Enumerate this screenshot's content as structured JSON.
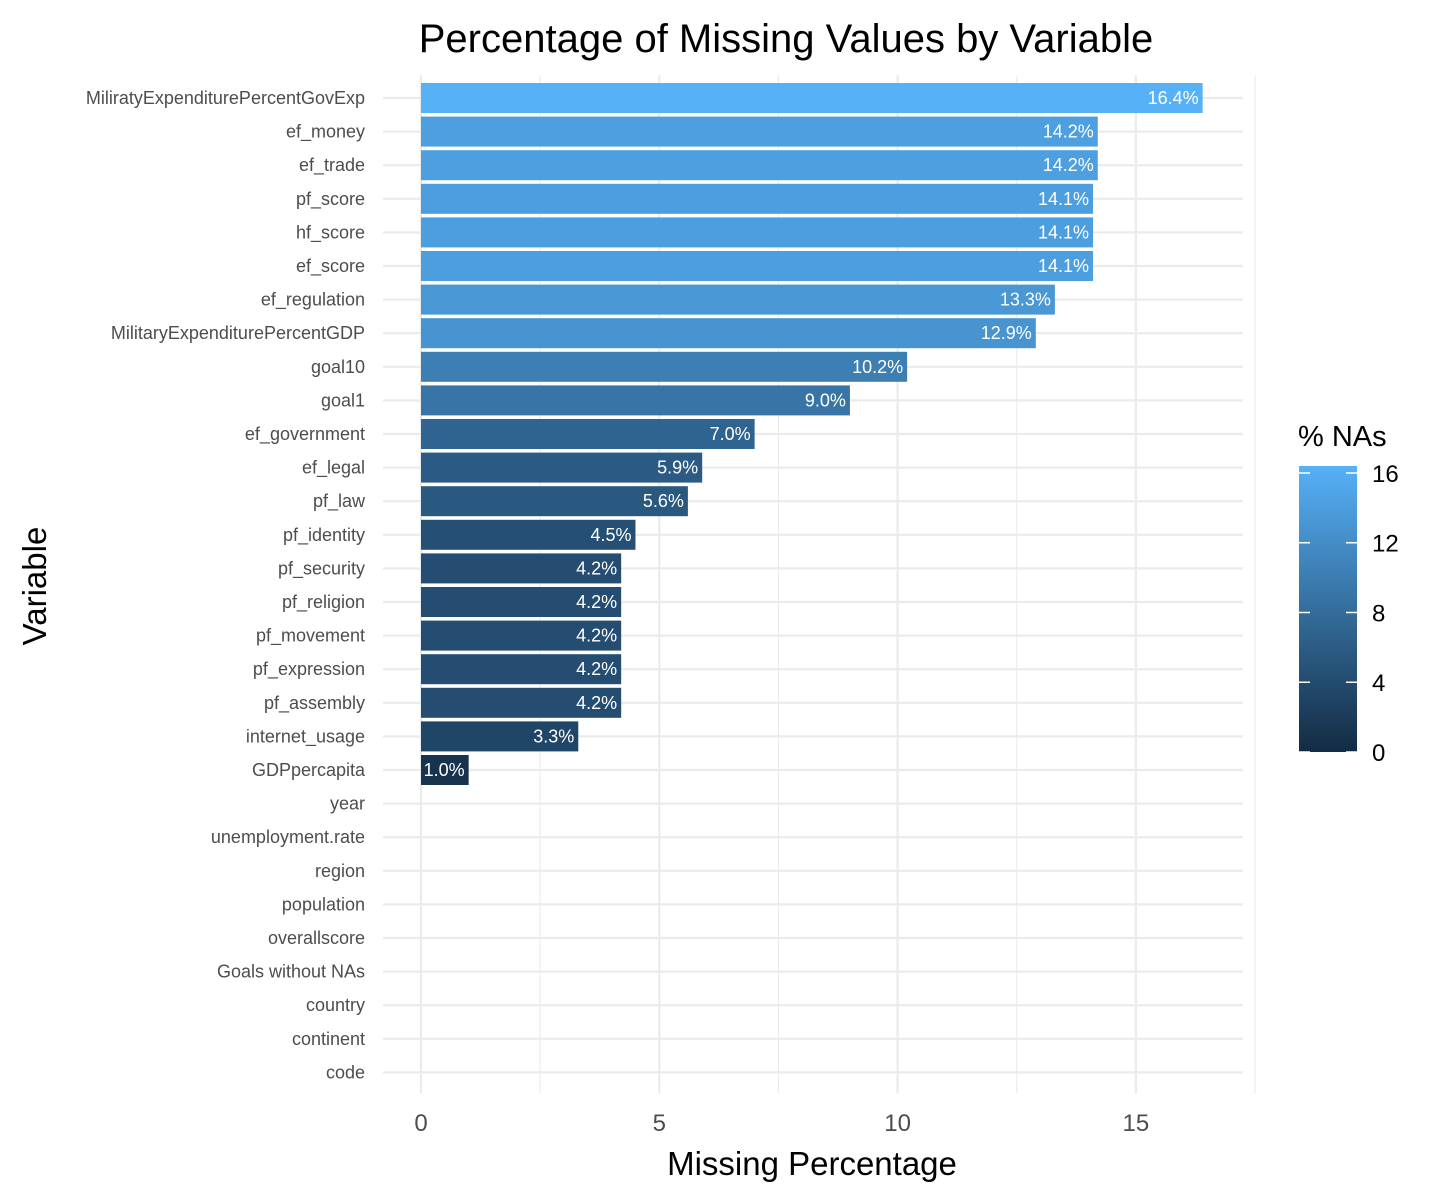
{
  "chart_data": {
    "type": "bar",
    "orientation": "horizontal",
    "title": "Percentage of Missing Values by Variable",
    "xlabel": "Missing Percentage",
    "ylabel": "Variable",
    "xlim": [
      0,
      17.2
    ],
    "xticks": [
      0,
      5,
      10,
      15
    ],
    "categories": [
      "MiliratyExpenditurePercentGovExp",
      "ef_money",
      "ef_trade",
      "pf_score",
      "hf_score",
      "ef_score",
      "ef_regulation",
      "MilitaryExpenditurePercentGDP",
      "goal10",
      "goal1",
      "ef_government",
      "ef_legal",
      "pf_law",
      "pf_identity",
      "pf_security",
      "pf_religion",
      "pf_movement",
      "pf_expression",
      "pf_assembly",
      "internet_usage",
      "GDPpercapita",
      "year",
      "unemployment.rate",
      "region",
      "population",
      "overallscore",
      "Goals without NAs",
      "country",
      "continent",
      "code"
    ],
    "values": [
      16.4,
      14.2,
      14.2,
      14.1,
      14.1,
      14.1,
      13.3,
      12.9,
      10.2,
      9.0,
      7.0,
      5.9,
      5.6,
      4.5,
      4.2,
      4.2,
      4.2,
      4.2,
      4.2,
      3.3,
      1.0,
      0,
      0,
      0,
      0,
      0,
      0,
      0,
      0,
      0
    ],
    "labels": [
      "16.4%",
      "14.2%",
      "14.2%",
      "14.1%",
      "14.1%",
      "14.1%",
      "13.3%",
      "12.9%",
      "10.2%",
      "9.0%",
      "7.0%",
      "5.9%",
      "5.6%",
      "4.5%",
      "4.2%",
      "4.2%",
      "4.2%",
      "4.2%",
      "4.2%",
      "3.3%",
      "1.0%",
      "",
      "",
      "",
      "",
      "",
      "",
      "",
      "",
      ""
    ],
    "legend": {
      "title": "% NAs",
      "ticks": [
        0,
        4,
        8,
        12,
        16
      ],
      "range": [
        0,
        16.4
      ],
      "color_low": "#132B43",
      "color_high": "#56B1F7",
      "position": "right"
    },
    "grid": true
  }
}
